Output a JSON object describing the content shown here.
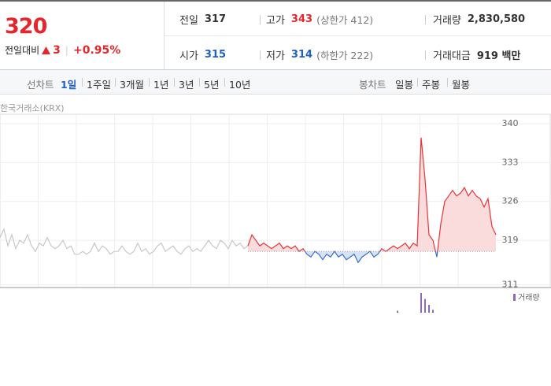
{
  "quote": {
    "price": 320,
    "change_label": "전일대비",
    "change": 3,
    "change_pct": "+0.95%",
    "prev_close": {
      "label": "전일",
      "value": 317
    },
    "high": {
      "label": "고가",
      "value": "343",
      "limit": "(상한가 412)"
    },
    "volume": {
      "label": "거래량",
      "value": "2,830,580"
    },
    "open": {
      "label": "시가",
      "value": "315"
    },
    "low": {
      "label": "저가",
      "value": "314",
      "limit": "(하한가 222)"
    },
    "amount": {
      "label": "거래대금",
      "value": "919 백만"
    }
  },
  "tabs": {
    "line_label": "선차트",
    "line_items": [
      "1일",
      "1주일",
      "3개월",
      "1년",
      "3년",
      "5년",
      "10년"
    ],
    "candle_label": "봉차트",
    "candle_items": [
      "일봉",
      "주봉",
      "월봉"
    ]
  },
  "chart_data": {
    "type": "line",
    "source": "한국거래소(KRX)",
    "ylim": [
      310.5,
      341
    ],
    "yticks": [
      311,
      319,
      326,
      333,
      340
    ],
    "series": [
      {
        "color": "#c8c8c8",
        "values": [
          319.5,
          321,
          318,
          320,
          317.5,
          319,
          318.5,
          320,
          318,
          317,
          318.5,
          318,
          319.5,
          318,
          317.5,
          318,
          319,
          317.5,
          318,
          316.5,
          316.5,
          317,
          316.5,
          317,
          318.5,
          317,
          318,
          317.5,
          316.5,
          317,
          317,
          318,
          317,
          316.5,
          317,
          318.5,
          317,
          317.5,
          316.5,
          317,
          318,
          318.5,
          317,
          317.5,
          318,
          317,
          316.5,
          317.5,
          318,
          317,
          317.5,
          317,
          318,
          319,
          318,
          317.5,
          319,
          318.5,
          317.5,
          319,
          318,
          318.5,
          317.5,
          318
        ]
      },
      {
        "color": "#e8343a",
        "color_below": "#3a6fd0",
        "values": [
          318,
          320,
          319,
          318,
          318.5,
          318,
          317.5,
          318,
          318.5,
          317.5,
          318,
          317.5,
          318,
          317,
          317.5,
          316.5,
          316,
          317,
          316.5,
          315.5,
          316.5,
          316,
          317,
          316,
          316.5,
          315.5,
          316,
          316.5,
          315,
          316,
          316.5,
          317,
          316,
          316.5,
          317.5,
          317,
          317.5,
          318,
          317.5,
          318,
          318.5,
          317.5,
          318.5,
          318,
          337.5,
          330,
          320,
          319,
          316,
          322,
          326,
          327,
          328,
          327,
          327.5,
          328.5,
          327,
          328,
          327,
          326.5,
          325,
          326.5,
          321.5,
          320
        ]
      }
    ],
    "volume": {
      "name": "거래량",
      "color": "#8a6bbf",
      "values": [
        0,
        0,
        0,
        0,
        0,
        0,
        0,
        0,
        0,
        0,
        0,
        0,
        0,
        0,
        0,
        0,
        0,
        0,
        0,
        0,
        0,
        0,
        0,
        0,
        0,
        0,
        0,
        0,
        0,
        0,
        0,
        0,
        0,
        0,
        0,
        0,
        0,
        0,
        2,
        0,
        0,
        0,
        0,
        0,
        20,
        14,
        8,
        3,
        0,
        0,
        0,
        0,
        0,
        0,
        0,
        0,
        0,
        0,
        0,
        0,
        0,
        0,
        0,
        0
      ]
    }
  }
}
